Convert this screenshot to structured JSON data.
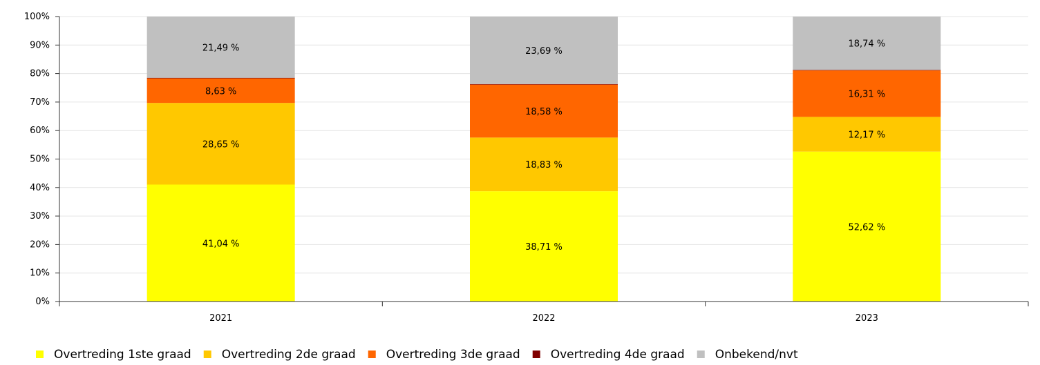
{
  "chart_data": {
    "type": "bar",
    "stacked": true,
    "percent_stacked": true,
    "categories": [
      "2021",
      "2022",
      "2023"
    ],
    "series": [
      {
        "name": "Overtreding 1ste graad",
        "color": "#ffff00",
        "values": [
          41.04,
          38.71,
          52.62
        ],
        "labels": [
          "41,04 %",
          "38,71 %",
          "52,62 %"
        ]
      },
      {
        "name": "Overtreding 2de graad",
        "color": "#ffc800",
        "values": [
          28.65,
          18.83,
          12.17
        ],
        "labels": [
          "28,65 %",
          "18,83 %",
          "12,17 %"
        ]
      },
      {
        "name": "Overtreding 3de graad",
        "color": "#ff6600",
        "values": [
          8.63,
          18.58,
          16.31
        ],
        "labels": [
          "8,63 %",
          "18,58 %",
          "16,31 %"
        ]
      },
      {
        "name": "Overtreding 4de graad",
        "color": "#800000",
        "values": [
          0.19,
          0.19,
          0.16
        ],
        "labels": [
          "",
          "",
          ""
        ]
      },
      {
        "name": "Onbekend/nvt",
        "color": "#c0c0c0",
        "values": [
          21.49,
          23.69,
          18.74
        ],
        "labels": [
          "21,49 %",
          "23,69 %",
          "18,74 %"
        ]
      }
    ],
    "yticks": [
      "0%",
      "10%",
      "20%",
      "30%",
      "40%",
      "50%",
      "60%",
      "70%",
      "80%",
      "90%",
      "100%"
    ],
    "ylim": [
      0,
      100
    ],
    "grid": true,
    "legend_position": "bottom",
    "title": "",
    "xlabel": "",
    "ylabel": ""
  }
}
